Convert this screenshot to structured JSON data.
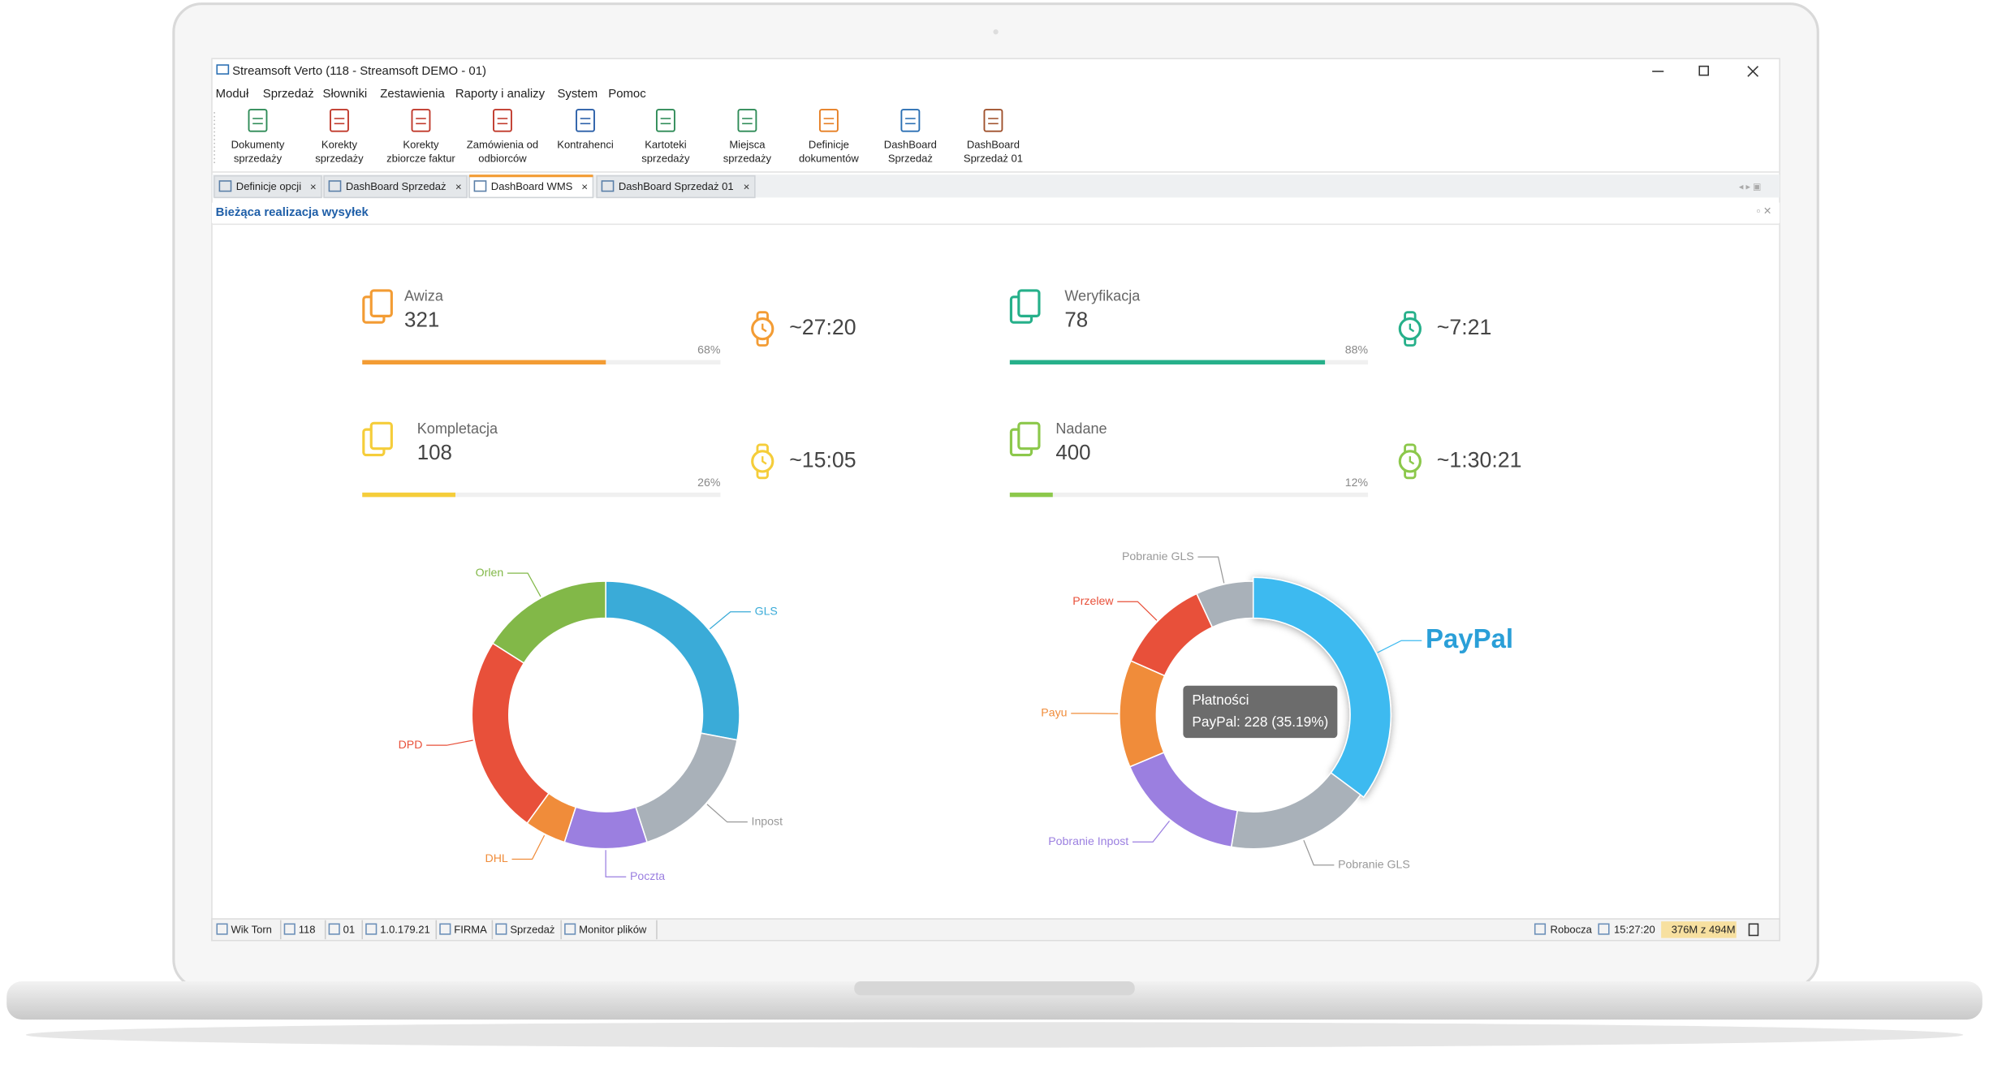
{
  "window": {
    "title": "Streamsoft Verto (118 - Streamsoft DEMO - 01)"
  },
  "menu": [
    "Moduł",
    "Sprzedaż",
    "Słowniki",
    "Zestawienia",
    "Raporty i analizy",
    "System",
    "Pomoc"
  ],
  "toolbar": [
    {
      "lines": [
        "Dokumenty",
        "sprzedaży"
      ]
    },
    {
      "lines": [
        "Korekty",
        "sprzedaży"
      ]
    },
    {
      "lines": [
        "Korekty",
        "zbiorcze faktur"
      ]
    },
    {
      "lines": [
        "Zamówienia od",
        "odbiorców"
      ]
    },
    {
      "lines": [
        "Kontrahenci"
      ]
    },
    {
      "lines": [
        "Kartoteki",
        "sprzedaży"
      ]
    },
    {
      "lines": [
        "Miejsca",
        "sprzedaży"
      ]
    },
    {
      "lines": [
        "Definicje",
        "dokumentów"
      ]
    },
    {
      "lines": [
        "DashBoard",
        "Sprzedaż"
      ]
    },
    {
      "lines": [
        "DashBoard",
        "Sprzedaż 01"
      ]
    }
  ],
  "tabs": [
    {
      "label": "Definicje opcji",
      "active": false
    },
    {
      "label": "DashBoard Sprzedaż",
      "active": false
    },
    {
      "label": "DashBoard WMS",
      "active": true
    },
    {
      "label": "DashBoard Sprzedaż 01",
      "active": false
    }
  ],
  "panel": {
    "title": "Bieżąca realizacja wysyłek"
  },
  "kpis": [
    {
      "name": "Awiza",
      "value": 321,
      "progress": 68,
      "progress_label": "68%",
      "time": "~27:20",
      "color": "#f39c34",
      "clock_color": "#f39c34"
    },
    {
      "name": "Weryfikacja",
      "value": 78,
      "progress": 88,
      "progress_label": "88%",
      "time": "~7:21",
      "color": "#26b08a",
      "clock_color": "#26b08a"
    },
    {
      "name": "Kompletacja",
      "value": 108,
      "progress": 26,
      "progress_label": "26%",
      "time": "~15:05",
      "color": "#f5cd3a",
      "clock_color": "#f5cd3a"
    },
    {
      "name": "Nadane",
      "value": 400,
      "progress": 12,
      "progress_label": "12%",
      "time": "~1:30:21",
      "color": "#8cc84b",
      "clock_color": "#8cc84b"
    }
  ],
  "chart_data": [
    {
      "type": "donut",
      "categories": [
        "GLS",
        "Inpost",
        "Poczta",
        "DHL",
        "DPD",
        "Orlen"
      ],
      "values": [
        28,
        17,
        10,
        5,
        24,
        16
      ],
      "colors": [
        "#3aabd8",
        "#a9b1b9",
        "#9b7fe0",
        "#f08c3a",
        "#e8503a",
        "#82b848"
      ]
    },
    {
      "type": "donut",
      "categories": [
        "PayPal",
        "Pobranie GLS",
        "Pobranie Inpost",
        "Payu",
        "Przelew",
        "Pobranie GLS"
      ],
      "values": [
        228,
        113,
        104,
        84,
        74,
        45
      ],
      "colors": [
        "#3ebaf0",
        "#a9b1b9",
        "#9b7fe0",
        "#f08c3a",
        "#e8503a",
        "#a9b1b9"
      ],
      "highlighted": 0,
      "tooltip": {
        "title": "Płatności",
        "text": "PayPal: 228 (35.19%)"
      }
    }
  ],
  "status_bar": {
    "left": [
      "Wik Torn",
      "118",
      "01",
      "1.0.179.21",
      "FIRMA",
      "Sprzedaż",
      "Monitor plików"
    ],
    "right": [
      "Robocza",
      "15:27:20",
      "376M z 494M"
    ]
  }
}
